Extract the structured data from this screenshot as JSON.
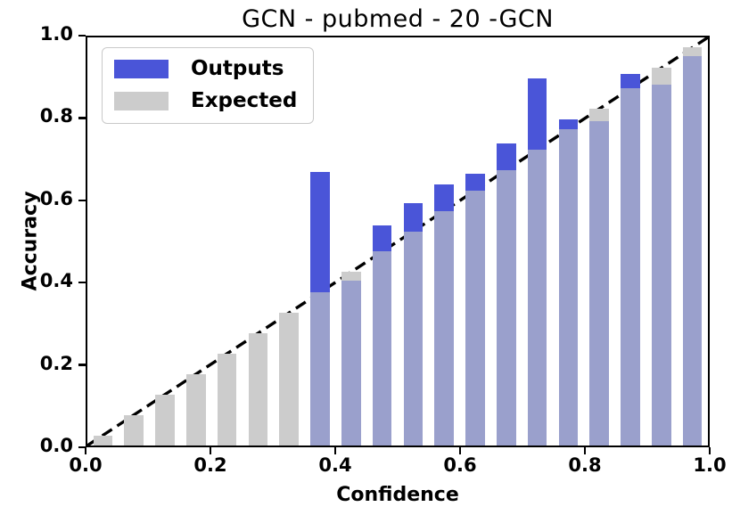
{
  "figure": {
    "title": "GCN - pubmed - 20 -GCN",
    "xlabel": "Confidence",
    "ylabel": "Accuracy"
  },
  "legend": {
    "items": [
      {
        "label": "Outputs",
        "color_key": "outputs"
      },
      {
        "label": "Expected",
        "color_key": "expected"
      }
    ]
  },
  "colors": {
    "outputs": "#4a55d8",
    "expected": "#cccccc",
    "overlap": "#9aa0cc",
    "diagonal": "#000000",
    "frame": "#000000",
    "background": "#ffffff"
  },
  "chart_data": {
    "type": "bar",
    "title": "GCN - pubmed - 20 -GCN",
    "xlabel": "Confidence",
    "ylabel": "Accuracy",
    "xlim": [
      0.0,
      1.0
    ],
    "ylim": [
      0.0,
      1.0
    ],
    "grid": false,
    "legend_position": "upper left",
    "bin_width": 0.05,
    "bar_width": 0.031,
    "bin_centers": [
      0.025,
      0.075,
      0.125,
      0.175,
      0.225,
      0.275,
      0.325,
      0.375,
      0.425,
      0.475,
      0.525,
      0.575,
      0.625,
      0.675,
      0.725,
      0.775,
      0.825,
      0.875,
      0.925,
      0.975
    ],
    "series": [
      {
        "name": "Outputs",
        "values": [
          0,
          0,
          0,
          0,
          0,
          0,
          0,
          0.67,
          0.405,
          0.54,
          0.595,
          0.64,
          0.665,
          0.74,
          0.9,
          0.8,
          0.795,
          0.91,
          0.885,
          0.955
        ]
      },
      {
        "name": "Expected",
        "values": [
          0.025,
          0.075,
          0.125,
          0.175,
          0.225,
          0.275,
          0.325,
          0.375,
          0.425,
          0.475,
          0.525,
          0.575,
          0.625,
          0.675,
          0.725,
          0.775,
          0.825,
          0.875,
          0.925,
          0.975
        ]
      }
    ],
    "x_tick_labels": [
      "0.0",
      "0.2",
      "0.4",
      "0.6",
      "0.8",
      "1.0"
    ],
    "y_tick_labels": [
      "0.0",
      "0.2",
      "0.4",
      "0.6",
      "0.8",
      "1.0"
    ],
    "diagonal": {
      "from": [
        0,
        0
      ],
      "to": [
        1,
        1
      ],
      "style": "dashed"
    }
  }
}
